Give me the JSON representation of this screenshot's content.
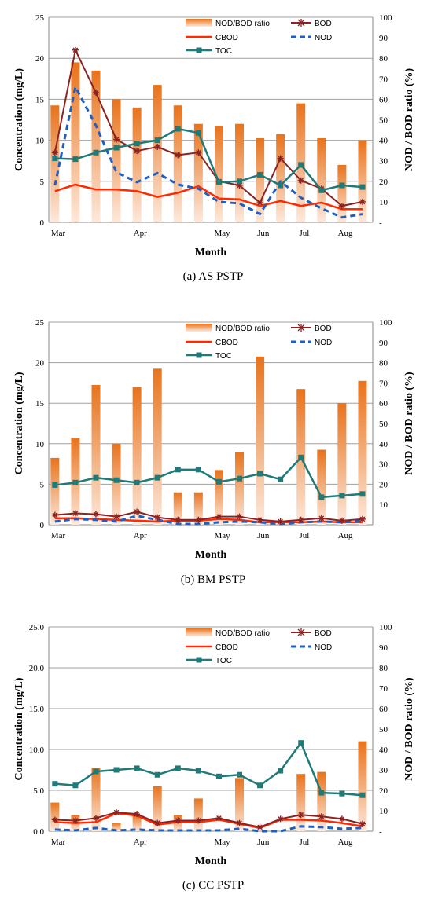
{
  "legend_labels": {
    "ratio": "NOD/BOD ratio",
    "bod": "BOD",
    "cbod": "CBOD",
    "nod": "NOD",
    "toc": "TOC"
  },
  "colors": {
    "bar_top": "#e8731c",
    "bar_bottom": "#fde9dc",
    "bod": "#8b2323",
    "cbod": "#ff2a00",
    "nod": "#1f5fbf",
    "toc": "#1f7a78",
    "grid": "#a0a0a0"
  },
  "chart_data": [
    {
      "type": "bar",
      "caption": "(a)  AS  PSTP",
      "xlabel": "Month",
      "ylabel_left": "Concentration (mg/L)",
      "ylabel_right": "NOD  / BOD ratio (%)",
      "ylim_left": [
        0,
        25
      ],
      "ylim_right": [
        0,
        100
      ],
      "yticks_left": [
        "0",
        "5",
        "10",
        "15",
        "20",
        "25"
      ],
      "yticks_right": [
        "-",
        "10",
        "20",
        "30",
        "40",
        "50",
        "60",
        "70",
        "80",
        "90",
        "100"
      ],
      "month_labels": [
        {
          "label": "Mar",
          "x": 0
        },
        {
          "label": "Apr",
          "x": 4
        },
        {
          "label": "May",
          "x": 8
        },
        {
          "label": "Jun",
          "x": 10
        },
        {
          "label": "Jul",
          "x": 12
        },
        {
          "label": "Aug",
          "x": 14
        }
      ],
      "x": [
        0.3,
        1.3,
        2.3,
        3.3,
        4.3,
        5.3,
        6.3,
        7.3,
        8.3,
        9.3,
        10.3,
        11.3,
        12.3,
        13.3,
        14.3,
        15.3
      ],
      "series": [
        {
          "name": "NOD/BOD ratio",
          "kind": "bar",
          "axis": "right",
          "values": [
            57,
            78,
            74,
            60,
            56,
            67,
            57,
            48,
            47,
            48,
            41,
            43,
            58,
            41,
            28,
            40
          ]
        },
        {
          "name": "BOD",
          "kind": "line",
          "axis": "left",
          "values": [
            8.5,
            21.0,
            15.8,
            10.1,
            8.7,
            9.2,
            8.2,
            8.5,
            5.0,
            4.5,
            2.4,
            7.8,
            5.1,
            4.1,
            2.0,
            2.5
          ]
        },
        {
          "name": "CBOD",
          "kind": "line",
          "axis": "left",
          "values": [
            3.8,
            4.6,
            4.0,
            4.0,
            3.8,
            3.1,
            3.6,
            4.4,
            2.9,
            2.8,
            2.0,
            2.6,
            2.0,
            2.4,
            1.6,
            1.6
          ]
        },
        {
          "name": "NOD",
          "kind": "line",
          "axis": "left",
          "values": [
            4.5,
            16.5,
            11.8,
            6.1,
            4.9,
            6.0,
            4.6,
            4.1,
            2.5,
            2.3,
            1.0,
            5.0,
            3.0,
            1.7,
            0.6,
            1.0
          ]
        },
        {
          "name": "TOC",
          "kind": "line",
          "axis": "left",
          "values": [
            7.8,
            7.7,
            8.5,
            9.1,
            9.6,
            10.0,
            11.4,
            10.9,
            4.9,
            5.0,
            5.8,
            4.5,
            7.0,
            3.9,
            4.5,
            4.3
          ]
        }
      ]
    },
    {
      "type": "bar",
      "caption": "(b)  BM  PSTP",
      "xlabel": "Month",
      "ylabel_left": "Concentration (mg/L)",
      "ylabel_right": "NOD  / BOD ratio (%)",
      "ylim_left": [
        0,
        25
      ],
      "ylim_right": [
        0,
        100
      ],
      "yticks_left": [
        "0",
        "5",
        "10",
        "15",
        "20",
        "25"
      ],
      "yticks_right": [
        "-",
        "10",
        "20",
        "30",
        "40",
        "50",
        "60",
        "70",
        "80",
        "90",
        "100"
      ],
      "month_labels": [
        {
          "label": "Mar",
          "x": 0
        },
        {
          "label": "Apr",
          "x": 4
        },
        {
          "label": "May",
          "x": 8
        },
        {
          "label": "Jun",
          "x": 10
        },
        {
          "label": "Jul",
          "x": 12
        },
        {
          "label": "Aug",
          "x": 14
        }
      ],
      "x": [
        0.3,
        1.3,
        2.3,
        3.3,
        4.3,
        5.3,
        6.3,
        7.3,
        8.3,
        9.3,
        10.3,
        11.3,
        12.3,
        13.3,
        14.3,
        15.3
      ],
      "series": [
        {
          "name": "NOD/BOD ratio",
          "kind": "bar",
          "axis": "right",
          "values": [
            33,
            43,
            69,
            40,
            68,
            77,
            16,
            16,
            27,
            36,
            83,
            0,
            67,
            37,
            60,
            71
          ]
        },
        {
          "name": "BOD",
          "kind": "line",
          "axis": "left",
          "values": [
            1.2,
            1.4,
            1.3,
            1.0,
            1.6,
            0.9,
            0.6,
            0.6,
            1.0,
            1.0,
            0.6,
            0.4,
            0.6,
            0.8,
            0.5,
            0.7
          ]
        },
        {
          "name": "CBOD",
          "kind": "line",
          "axis": "left",
          "values": [
            0.8,
            0.8,
            0.7,
            0.6,
            0.5,
            0.4,
            0.5,
            0.5,
            0.7,
            0.6,
            0.3,
            0.3,
            0.3,
            0.4,
            0.3,
            0.3
          ]
        },
        {
          "name": "NOD",
          "kind": "line",
          "axis": "left",
          "values": [
            0.4,
            0.7,
            0.6,
            0.4,
            1.1,
            0.6,
            0.1,
            0.1,
            0.3,
            0.4,
            0.3,
            0.1,
            0.3,
            0.4,
            0.3,
            0.5
          ]
        },
        {
          "name": "TOC",
          "kind": "line",
          "axis": "left",
          "values": [
            4.9,
            5.2,
            5.8,
            5.5,
            5.2,
            5.8,
            6.8,
            6.8,
            5.3,
            5.7,
            6.3,
            5.6,
            8.3,
            3.4,
            3.6,
            3.8
          ]
        }
      ]
    },
    {
      "type": "bar",
      "caption": "(c)  CC  PSTP",
      "xlabel": "Month",
      "ylabel_left": "Concentration (mg/L)",
      "ylabel_right": "NOD  / BOD ratio (%)",
      "ylim_left": [
        0,
        25
      ],
      "ylim_right": [
        0,
        100
      ],
      "yticks_left": [
        "0.0",
        "5.0",
        "10.0",
        "15.0",
        "20.0",
        "25.0"
      ],
      "yticks_right": [
        "-",
        "10",
        "20",
        "30",
        "40",
        "50",
        "60",
        "70",
        "80",
        "90",
        "100"
      ],
      "month_labels": [
        {
          "label": "Mar",
          "x": 0
        },
        {
          "label": "Apr",
          "x": 4
        },
        {
          "label": "May",
          "x": 8
        },
        {
          "label": "Jun",
          "x": 10
        },
        {
          "label": "Jul",
          "x": 12
        },
        {
          "label": "Aug",
          "x": 14
        }
      ],
      "x": [
        0.3,
        1.3,
        2.3,
        3.3,
        4.3,
        5.3,
        6.3,
        7.3,
        8.3,
        9.3,
        10.3,
        11.3,
        12.3,
        13.3,
        14.3,
        15.3
      ],
      "series": [
        {
          "name": "NOD/BOD ratio",
          "kind": "bar",
          "axis": "right",
          "values": [
            14,
            8,
            31,
            4,
            8,
            22,
            8,
            16,
            0,
            26,
            0,
            0,
            28,
            29,
            0,
            44
          ]
        },
        {
          "name": "BOD",
          "kind": "line",
          "axis": "left",
          "values": [
            1.4,
            1.3,
            1.6,
            2.3,
            2.1,
            1.0,
            1.3,
            1.3,
            1.6,
            1.0,
            0.5,
            1.5,
            2.0,
            1.8,
            1.5,
            0.9
          ]
        },
        {
          "name": "CBOD",
          "kind": "line",
          "axis": "left",
          "values": [
            1.1,
            1.0,
            1.1,
            2.2,
            1.9,
            0.8,
            1.1,
            1.1,
            1.4,
            0.9,
            0.4,
            1.4,
            1.4,
            1.3,
            1.0,
            0.6
          ]
        },
        {
          "name": "NOD",
          "kind": "line",
          "axis": "left",
          "values": [
            0.2,
            0.1,
            0.4,
            0.1,
            0.2,
            0.1,
            0.1,
            0.1,
            0.1,
            0.3,
            0.0,
            0.0,
            0.6,
            0.5,
            0.3,
            0.4
          ]
        },
        {
          "name": "TOC",
          "kind": "line",
          "axis": "left",
          "values": [
            5.8,
            5.6,
            7.3,
            7.5,
            7.7,
            6.9,
            7.7,
            7.4,
            6.7,
            6.9,
            5.6,
            7.4,
            10.8,
            4.7,
            4.6,
            4.4
          ]
        }
      ]
    }
  ]
}
